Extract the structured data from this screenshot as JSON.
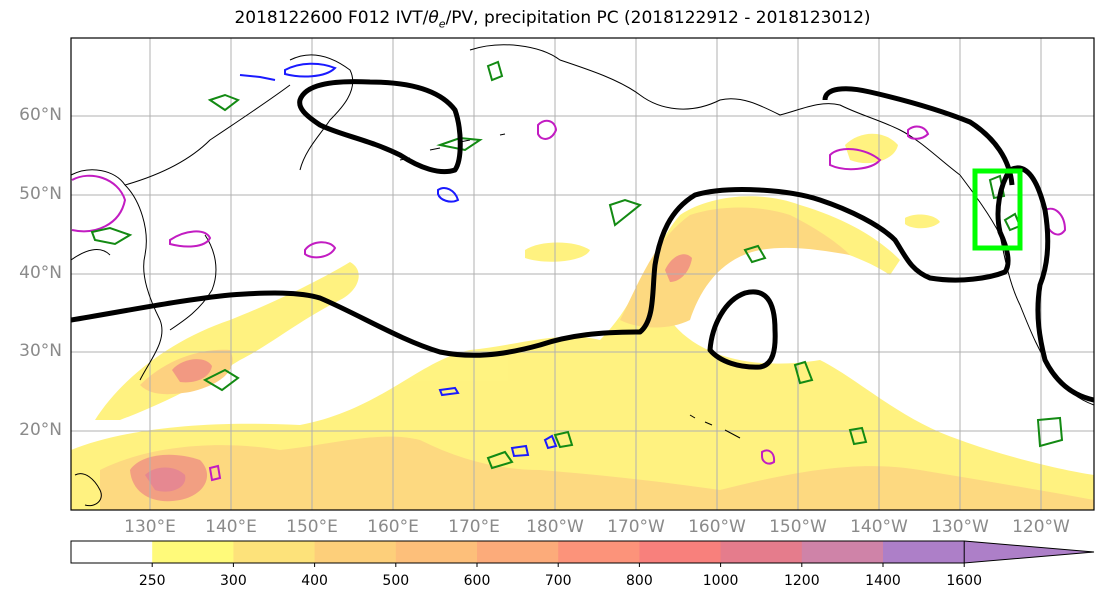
{
  "title": {
    "prefix": "2018122600 F012 IVT/",
    "theta": "θ",
    "theta_sub": "e",
    "suffix": "/PV, precipitation PC (2018122912 - 2018123012)"
  },
  "lat_labels": [
    "60°N",
    "50°N",
    "40°N",
    "30°N",
    "20°N"
  ],
  "lon_labels": [
    "130°E",
    "140°E",
    "150°E",
    "160°E",
    "170°E",
    "180°W",
    "170°W",
    "160°W",
    "150°W",
    "140°W",
    "130°W",
    "120°W"
  ],
  "colorbar": {
    "ticks": [
      "250",
      "300",
      "400",
      "500",
      "600",
      "700",
      "800",
      "1000",
      "1200",
      "1400",
      "1600"
    ],
    "colors": [
      "#ffffff",
      "#fffa7a",
      "#fde27a",
      "#fdcf7a",
      "#fdbf7a",
      "#fcab7a",
      "#fc937a",
      "#f8807c",
      "#e57c8c",
      "#cf83a8",
      "#ad7fc8"
    ]
  },
  "colors": {
    "ivt_contour": "#000000",
    "box": "#00ff00",
    "pv_green": "#138a13",
    "pv_blue": "#1a1aff",
    "pv_magenta": "#c21cc2",
    "grid": "#b0b0b0"
  }
}
